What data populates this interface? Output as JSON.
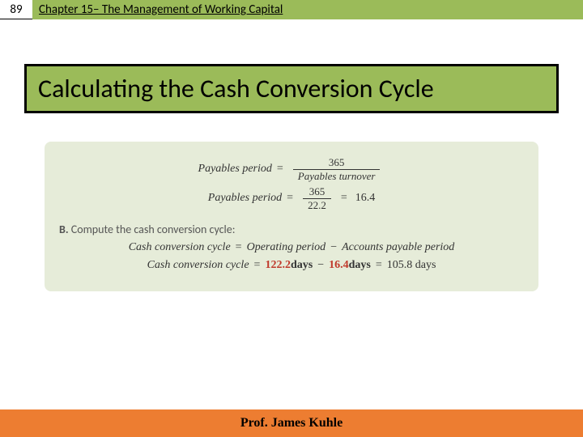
{
  "header": {
    "page_number": "89",
    "chapter": "Chapter 15– The Management of Working Capital"
  },
  "title": "Calculating the Cash Conversion Cycle",
  "content": {
    "payables_period_formula": {
      "lhs": "Payables period",
      "numerator": "365",
      "denominator": "Payables turnover"
    },
    "payables_period_calc": {
      "lhs": "Payables period",
      "numerator": "365",
      "denominator": "22.2",
      "result": "16.4"
    },
    "section_b": {
      "label": "B.",
      "text": "Compute the cash conversion cycle:"
    },
    "ccc_formula": {
      "lhs": "Cash conversion cycle",
      "term1": "Operating period",
      "term2": "Accounts payable period"
    },
    "ccc_calc": {
      "lhs": "Cash conversion cycle",
      "val1": "122.2",
      "unit1": "days",
      "val2": "16.4",
      "unit2": "days",
      "result": "105.8 days"
    }
  },
  "footer": {
    "author": "Prof. James Kuhle"
  },
  "colors": {
    "green": "#9bbb59",
    "orange": "#ed7d31",
    "panel_bg": "#e6ecd9",
    "emphasis": "#c0392b"
  }
}
